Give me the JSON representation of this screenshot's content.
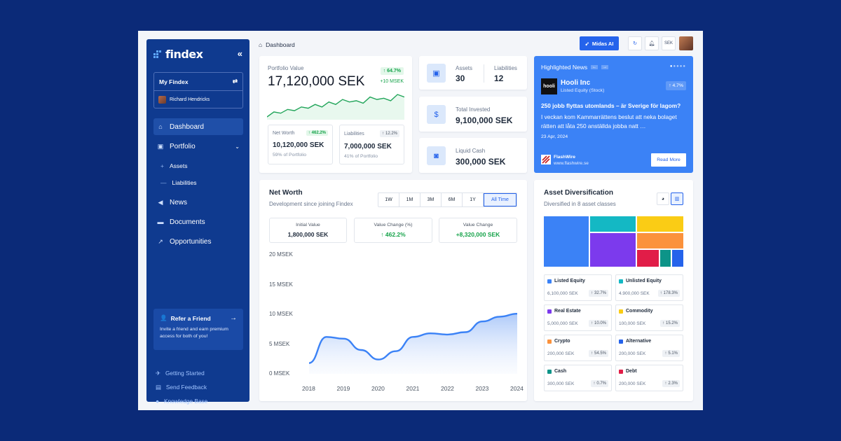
{
  "brand": {
    "name": "findex"
  },
  "sidebar": {
    "my_findex": "My Findex",
    "user": "Richard Hendricks",
    "nav": [
      {
        "label": "Dashboard",
        "active": true
      },
      {
        "label": "Portfolio"
      },
      {
        "label": "News"
      },
      {
        "label": "Documents"
      },
      {
        "label": "Opportunities"
      }
    ],
    "portfolio_sub": [
      "Assets",
      "Liabilities"
    ],
    "refer": {
      "title": "Refer a Friend",
      "desc": "Invite a friend and earn premium access for both of you!"
    },
    "footer": [
      "Getting Started",
      "Send Feedback",
      "Knowledge Base"
    ]
  },
  "topbar": {
    "breadcrumb": "Dashboard",
    "ai_button": "Midas AI",
    "currency": "SEK"
  },
  "portfolio": {
    "label": "Portfolio Value",
    "value": "17,120,000 SEK",
    "change_pct": "64.7%",
    "change_abs": "+10 MSEK",
    "net_worth": {
      "label": "Net Worth",
      "pct": "462.2%",
      "value": "10,120,000 SEK",
      "share": "59% of Portfolio"
    },
    "liabilities": {
      "label": "Liabilities",
      "pct": "12.2%",
      "value": "7,000,000 SEK",
      "share": "41% of Portfolio"
    },
    "sparkline": [
      32,
      28,
      29,
      26,
      27,
      24,
      25,
      22,
      24,
      20,
      22,
      18,
      20,
      19,
      21,
      16,
      18,
      17,
      19,
      14,
      16
    ]
  },
  "counts": {
    "assets_label": "Assets",
    "assets": "30",
    "liabilities_label": "Liabilities",
    "liabilities": "12"
  },
  "invested": {
    "label": "Total Invested",
    "value": "9,100,000 SEK"
  },
  "cash": {
    "label": "Liquid Cash",
    "value": "300,000 SEK"
  },
  "news": {
    "title": "Highlighted News",
    "company": "Hooli Inc",
    "company_type": "Listed Equity (Stock)",
    "logo_text": "hooli",
    "change": "4.7%",
    "headline": "250 jobb flyttas utomlands – är Sverige för lagom?",
    "body": "I veckan kom Kammarrättens beslut att neka bolaget rätten att låta 250 anställda jobba natt …",
    "date": "23 Apr, 2024",
    "source": "FlashWire",
    "source_url": "www.flashwire.se",
    "read_more": "Read More"
  },
  "net_worth_chart": {
    "title": "Net Worth",
    "subtitle": "Development since joining Findex",
    "ranges": [
      "1W",
      "1M",
      "3M",
      "6M",
      "1Y",
      "All Time"
    ],
    "selected_range": "All Time",
    "stats": [
      {
        "label": "Initial Value",
        "value": "1,800,000 SEK"
      },
      {
        "label": "Value Change (%)",
        "value": "462.2%"
      },
      {
        "label": "Value Change",
        "value": "+8,320,000 SEK"
      }
    ]
  },
  "chart_data": {
    "type": "area",
    "title": "Net Worth",
    "x": [
      2018,
      2018.5,
      2019,
      2019.5,
      2020,
      2020.5,
      2021,
      2021.5,
      2022,
      2022.5,
      2023,
      2023.5,
      2024
    ],
    "y": [
      1.8,
      6.2,
      5.9,
      4.0,
      2.4,
      3.8,
      6.2,
      6.8,
      6.6,
      7.0,
      8.8,
      9.6,
      10.1
    ],
    "yticks": [
      "0 MSEK",
      "5 MSEK",
      "10 MSEK",
      "15 MSEK",
      "20 MSEK"
    ],
    "xticks": [
      "2018",
      "2019",
      "2020",
      "2021",
      "2022",
      "2023",
      "2024"
    ],
    "ylim": [
      0,
      20
    ],
    "grid": false,
    "color": "#3b82f6"
  },
  "diversification": {
    "title": "Asset Diversification",
    "subtitle": "Diversified in 8 asset classes",
    "classes": [
      {
        "name": "Listed Equity",
        "value": "6,100,000 SEK",
        "pct": "32.7%",
        "color": "#3b82f6"
      },
      {
        "name": "Unlisted Equity",
        "value": "4.900,000 SEK",
        "pct": "178.3%",
        "color": "#14b8c4"
      },
      {
        "name": "Real Estate",
        "value": "5,000,000 SEK",
        "pct": "10.0%",
        "color": "#7c3aed"
      },
      {
        "name": "Commodity",
        "value": "100,000 SEK",
        "pct": "15.2%",
        "color": "#facc15"
      },
      {
        "name": "Crypto",
        "value": "200,000 SEK",
        "pct": "54.5%",
        "color": "#fb923c"
      },
      {
        "name": "Alternative",
        "value": "200,000 SEK",
        "pct": "5.1%",
        "color": "#2563eb"
      },
      {
        "name": "Cash",
        "value": "300,000 SEK",
        "pct": "0.7%",
        "color": "#0d9488"
      },
      {
        "name": "Debt",
        "value": "200,000 SEK",
        "pct": "2.3%",
        "color": "#e11d48"
      }
    ]
  }
}
